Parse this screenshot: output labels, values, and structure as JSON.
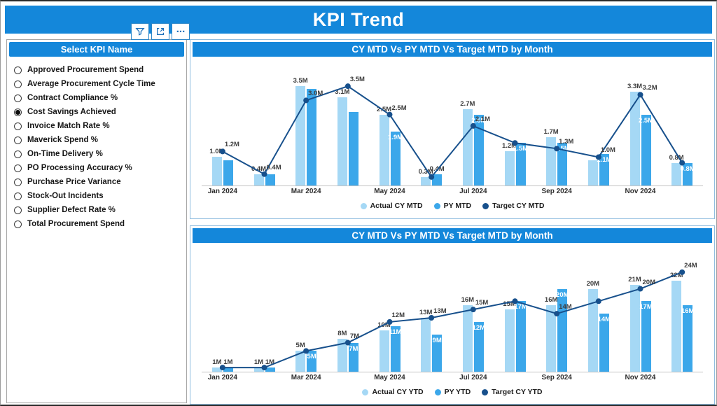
{
  "header": {
    "title": "KPI Trend"
  },
  "toolbar": {
    "filter": "filter",
    "expand": "expand",
    "more": "more options",
    "more_glyph": "..."
  },
  "colors": {
    "accent_blue": "#1487da",
    "actual_bar": "#a5d8f5",
    "py_bar": "#3ba7ea",
    "target_line": "#17508c"
  },
  "sidebar": {
    "title": "Select KPI Name",
    "items": [
      {
        "label": "Approved Procurement Spend",
        "selected": false
      },
      {
        "label": "Average Procurement Cycle Time",
        "selected": false
      },
      {
        "label": "Contract Compliance %",
        "selected": false
      },
      {
        "label": "Cost Savings Achieved",
        "selected": true
      },
      {
        "label": "Invoice Match Rate %",
        "selected": false
      },
      {
        "label": "Maverick Spend %",
        "selected": false
      },
      {
        "label": "On-Time Delivery %",
        "selected": false
      },
      {
        "label": "PO Processing Accuracy %",
        "selected": false
      },
      {
        "label": "Purchase Price Variance",
        "selected": false
      },
      {
        "label": "Stock-Out Incidents",
        "selected": false
      },
      {
        "label": "Supplier Defect Rate %",
        "selected": false
      },
      {
        "label": "Total Procurement Spend",
        "selected": false
      }
    ]
  },
  "chart_data": [
    {
      "type": "bar",
      "subtype": "grouped-bars-with-target-line",
      "title": "CY MTD Vs PY MTD Vs Target MTD by Month",
      "months": [
        "Jan 2024",
        "Feb 2024",
        "Mar 2024",
        "Apr 2024",
        "May 2024",
        "Jun 2024",
        "Jul 2024",
        "Aug 2024",
        "Sep 2024",
        "Oct 2024",
        "Nov 2024",
        "Dec 2024"
      ],
      "x_axis_visible": [
        "Jan 2024",
        "Mar 2024",
        "May 2024",
        "Jul 2024",
        "Sep 2024",
        "Nov 2024"
      ],
      "ylim": [
        0,
        3.8
      ],
      "unit": "M",
      "series": [
        {
          "name": "Actual CY MTD",
          "type": "bar",
          "color": "#a5d8f5",
          "values": [
            1.0,
            0.4,
            3.5,
            3.1,
            2.5,
            0.3,
            2.7,
            1.2,
            1.7,
            0.9,
            3.3,
            0.8
          ],
          "labels": [
            "1.0M",
            "0.4M",
            "3.5M",
            "3.1M",
            "2.5M",
            "0.3M",
            "2.7M",
            "1.2M",
            "1.7M",
            null,
            "3.3M",
            "0.8M"
          ]
        },
        {
          "name": "PY MTD",
          "type": "bar",
          "color": "#3ba7ea",
          "values": [
            0.9,
            0.4,
            3.4,
            2.6,
            1.9,
            0.4,
            2.5,
            1.5,
            1.5,
            1.1,
            2.5,
            0.8
          ],
          "labels": [
            null,
            null,
            null,
            null,
            "1.9M",
            "0.4M",
            "2.5M",
            "1.5M",
            "1.5M",
            "1.1M",
            "2.5M",
            "0.8M"
          ]
        },
        {
          "name": "Target CY MTD",
          "type": "line",
          "color": "#17508c",
          "values": [
            1.2,
            0.4,
            3.0,
            3.5,
            2.5,
            0.3,
            2.1,
            1.5,
            1.3,
            1.0,
            3.2,
            0.8
          ],
          "labels": [
            "1.2M",
            "0.4M",
            "3.0M",
            "3.5M",
            "2.5M",
            null,
            "2.1M",
            null,
            "1.3M",
            "1.0M",
            "3.2M",
            null
          ]
        }
      ]
    },
    {
      "type": "bar",
      "subtype": "grouped-bars-with-target-line",
      "title": "CY MTD Vs PY MTD Vs Target MTD by Month",
      "months": [
        "Jan 2024",
        "Feb 2024",
        "Mar 2024",
        "Apr 2024",
        "May 2024",
        "Jun 2024",
        "Jul 2024",
        "Aug 2024",
        "Sep 2024",
        "Oct 2024",
        "Nov 2024",
        "Dec 2024"
      ],
      "x_axis_visible": [
        "Jan 2024",
        "Mar 2024",
        "May 2024",
        "Jul 2024",
        "Sep 2024",
        "Nov 2024"
      ],
      "ylim": [
        0,
        26
      ],
      "unit": "M",
      "series": [
        {
          "name": "Actual CY YTD",
          "type": "bar",
          "color": "#a5d8f5",
          "values": [
            1,
            1,
            5,
            8,
            10,
            13,
            16,
            15,
            16,
            20,
            21,
            22
          ],
          "labels": [
            "1M",
            "1M",
            "5M",
            "8M",
            "10M",
            "13M",
            "16M",
            "15M",
            "16M",
            "20M",
            "21M",
            "22M"
          ]
        },
        {
          "name": "PY YTD",
          "type": "bar",
          "color": "#3ba7ea",
          "values": [
            1,
            1,
            5,
            7,
            11,
            9,
            12,
            17,
            20,
            14,
            17,
            16
          ],
          "labels": [
            "1M",
            "1M",
            "5M",
            "7M",
            "11M",
            "9M",
            "12M",
            "17M",
            "20M",
            "14M",
            "17M",
            "16M"
          ]
        },
        {
          "name": "Target CY YTD",
          "type": "line",
          "color": "#17508c",
          "values": [
            1,
            1,
            5,
            7,
            12,
            13,
            15,
            17,
            14,
            17,
            20,
            24
          ],
          "labels": [
            null,
            null,
            null,
            "7M",
            "12M",
            "13M",
            "15M",
            null,
            "14M",
            null,
            "20M",
            "24M"
          ]
        }
      ]
    }
  ]
}
